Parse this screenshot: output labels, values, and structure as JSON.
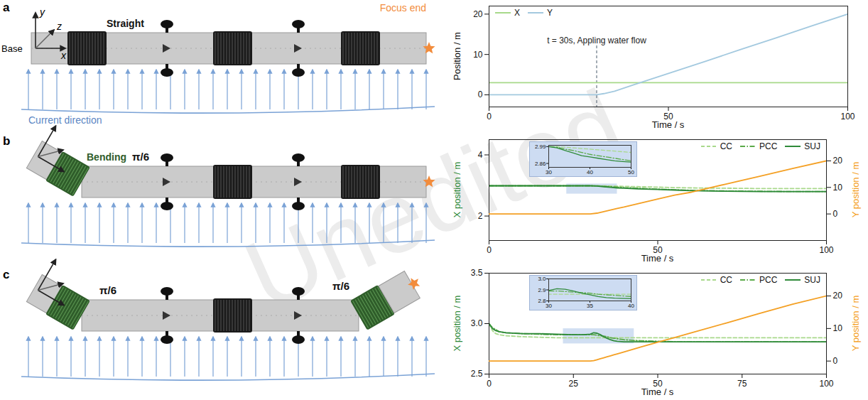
{
  "watermark": "Unedited",
  "diagram": {
    "panels": [
      {
        "letter": "a",
        "axes": [
          "x",
          "y",
          "z"
        ],
        "base": "Base",
        "label": "Straight",
        "end_label": "Focus end",
        "current_label": "Current direction",
        "bends": []
      },
      {
        "letter": "b",
        "label": "Bending",
        "bends": [
          {
            "label": "π/6",
            "at": "base"
          }
        ]
      },
      {
        "letter": "c",
        "bends": [
          {
            "label": "π/6",
            "at": "base"
          },
          {
            "label": "π/6",
            "at": "end"
          }
        ]
      }
    ]
  },
  "chart_data": [
    {
      "type": "line",
      "xlabel": "Time / s",
      "ylabel": "Position / m",
      "x": [
        0,
        10,
        20,
        30,
        32,
        35,
        40,
        50,
        60,
        70,
        80,
        90,
        100
      ],
      "xlim": [
        0,
        100
      ],
      "xticks": [
        0,
        50,
        100
      ],
      "ylim": [
        -3,
        22
      ],
      "yticks": [
        0,
        10,
        20
      ],
      "legend": "top-left",
      "annotation": {
        "text": "t = 30s, Appling water flow",
        "x": 30
      },
      "series": [
        {
          "name": "X",
          "color": "#a8d98a",
          "line_style": "solid",
          "values": [
            3,
            3,
            3,
            3,
            3,
            3,
            3,
            3,
            3,
            3,
            3,
            3,
            3
          ]
        },
        {
          "name": "Y",
          "color": "#a3c9df",
          "line_style": "solid",
          "values": [
            0,
            0,
            0,
            0,
            0.3,
            0.9,
            2.4,
            5.3,
            8.2,
            11.2,
            14.1,
            17.1,
            20
          ]
        }
      ]
    },
    {
      "type": "line",
      "xlabel": "Time / s",
      "ylabel": "X position / m",
      "y2label": "Y position / m",
      "x": [
        0,
        5,
        10,
        15,
        20,
        25,
        28,
        30,
        32,
        34,
        36,
        38,
        40,
        42,
        44,
        46,
        48,
        50,
        55,
        60,
        70,
        80,
        90,
        100
      ],
      "xlim": [
        0,
        100
      ],
      "xticks": [
        0,
        50,
        100
      ],
      "ylim": [
        1.2,
        4.5
      ],
      "yticks": [
        2,
        4
      ],
      "y2lim": [
        -10,
        28
      ],
      "y2ticks": [
        0,
        10,
        20
      ],
      "legend": "top-right",
      "series": [
        {
          "name": "CC",
          "color": "#a9d98c",
          "line_style": "dashed",
          "values": [
            2.99,
            2.99,
            2.99,
            2.99,
            2.99,
            2.99,
            2.99,
            2.99,
            2.99,
            2.985,
            2.98,
            2.975,
            2.97,
            2.965,
            2.96,
            2.955,
            2.95,
            2.945,
            2.93,
            2.92,
            2.91,
            2.9,
            2.9,
            2.9
          ]
        },
        {
          "name": "PCC",
          "color": "#5aaa48",
          "line_style": "dashdot",
          "values": [
            2.99,
            2.99,
            2.99,
            2.99,
            2.99,
            2.99,
            2.99,
            2.99,
            2.985,
            2.97,
            2.96,
            2.945,
            2.93,
            2.92,
            2.91,
            2.9,
            2.89,
            2.88,
            2.86,
            2.84,
            2.82,
            2.81,
            2.8,
            2.8
          ]
        },
        {
          "name": "SUJ",
          "color": "#2f8a3a",
          "line_style": "solid",
          "values": [
            2.99,
            2.99,
            2.99,
            2.99,
            2.99,
            2.99,
            2.99,
            2.99,
            2.98,
            2.96,
            2.94,
            2.92,
            2.91,
            2.9,
            2.89,
            2.88,
            2.875,
            2.87,
            2.85,
            2.83,
            2.81,
            2.8,
            2.8,
            2.8
          ]
        },
        {
          "color": "#f4a024",
          "line_style": "solid",
          "axis": "y2",
          "values": [
            0,
            0,
            0,
            0,
            0,
            0,
            0,
            0,
            0.3,
            0.9,
            1.5,
            2.1,
            2.6,
            3.2,
            3.8,
            4.4,
            5.0,
            5.6,
            7.1,
            8.2,
            11.2,
            14.1,
            17.1,
            20
          ]
        }
      ],
      "inset": {
        "xlim": [
          30,
          50
        ],
        "xticks": [
          30,
          40,
          50
        ],
        "ylim": [
          2.83,
          3.0
        ],
        "yticks": [
          2.86,
          2.99
        ],
        "region": {
          "x": [
            23,
            38
          ],
          "y": [
            2.72,
            3.05
          ]
        }
      }
    },
    {
      "type": "line",
      "xlabel": "Time / s",
      "ylabel": "X position / m",
      "y2label": "Y position / m",
      "x": [
        0,
        1,
        2,
        3,
        5,
        10,
        15,
        20,
        25,
        28,
        30,
        31,
        32,
        33,
        34,
        35,
        36,
        37,
        38,
        40,
        45,
        50,
        55,
        60,
        70,
        80,
        90,
        100
      ],
      "xlim": [
        0,
        100
      ],
      "xticks": [
        0,
        25,
        50,
        75,
        100
      ],
      "ylim": [
        2.5,
        3.5
      ],
      "yticks": [
        2.5,
        {
          "value": 3,
          "label": "3.0"
        },
        3.5
      ],
      "y2lim": [
        -4,
        27
      ],
      "y2ticks": [
        0,
        10,
        20
      ],
      "legend": "top-right",
      "series": [
        {
          "name": "CC",
          "color": "#a9d98c",
          "line_style": "dashed",
          "values": [
            3.0,
            2.93,
            2.9,
            2.89,
            2.88,
            2.87,
            2.865,
            2.86,
            2.86,
            2.86,
            2.86,
            2.86,
            2.86,
            2.86,
            2.86,
            2.86,
            2.86,
            2.86,
            2.86,
            2.86,
            2.86,
            2.86,
            2.86,
            2.86,
            2.86,
            2.86,
            2.86,
            2.86
          ]
        },
        {
          "name": "PCC",
          "color": "#5aaa48",
          "line_style": "dashdot",
          "values": [
            3.0,
            2.96,
            2.94,
            2.92,
            2.91,
            2.9,
            2.895,
            2.89,
            2.89,
            2.89,
            2.89,
            2.89,
            2.885,
            2.88,
            2.875,
            2.87,
            2.86,
            2.855,
            2.85,
            2.84,
            2.83,
            2.825,
            2.82,
            2.82,
            2.82,
            2.82,
            2.82,
            2.82
          ]
        },
        {
          "name": "SUJ",
          "color": "#2f8a3a",
          "line_style": "solid",
          "values": [
            3.0,
            2.95,
            2.93,
            2.92,
            2.91,
            2.9,
            2.9,
            2.895,
            2.89,
            2.89,
            2.895,
            2.91,
            2.905,
            2.89,
            2.87,
            2.855,
            2.84,
            2.83,
            2.825,
            2.82,
            2.82,
            2.82,
            2.82,
            2.82,
            2.82,
            2.82,
            2.82,
            2.82
          ]
        },
        {
          "color": "#f4a024",
          "line_style": "solid",
          "axis": "y2",
          "values": [
            0,
            0,
            0,
            0,
            0,
            0,
            0,
            0,
            0,
            0,
            0,
            0.1,
            0.4,
            0.7,
            1.0,
            1.3,
            1.6,
            1.9,
            2.2,
            2.8,
            4.3,
            5.8,
            7.2,
            8.7,
            11.6,
            14.6,
            17.5,
            20
          ]
        }
      ],
      "inset": {
        "xlim": [
          30,
          40
        ],
        "xticks": [
          30,
          35,
          40
        ],
        "ylim": [
          2.8,
          3.0
        ],
        "yticks": [
          2.8,
          2.9,
          {
            "value": 3,
            "label": "3.0"
          }
        ],
        "region": {
          "x": [
            22,
            43
          ],
          "y": [
            2.8,
            2.95
          ]
        }
      }
    }
  ]
}
